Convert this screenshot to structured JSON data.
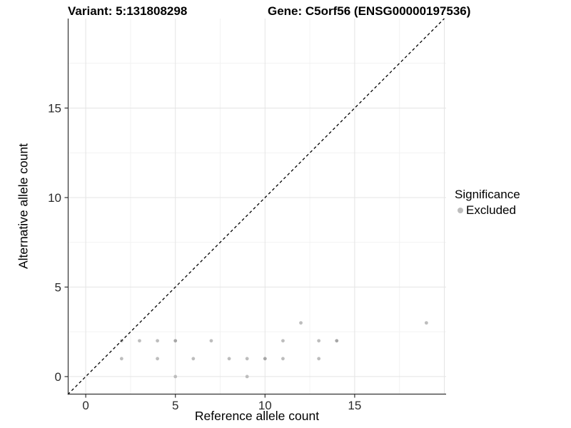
{
  "chart_data": {
    "type": "scatter",
    "title": {
      "left": "Variant: 5:131808298",
      "right": "Gene: C5orf56 (ENSG00000197536)"
    },
    "xlabel": "Reference allele count",
    "ylabel": "Alternative allele count",
    "xlim": [
      -1,
      20.1
    ],
    "ylim": [
      -1,
      20
    ],
    "x_ticks": [
      0,
      5,
      10,
      15
    ],
    "y_ticks": [
      0,
      5,
      10,
      15
    ],
    "x_grid_major": [
      0,
      5,
      10,
      15,
      20
    ],
    "y_grid_major": [
      0,
      5,
      10,
      15
    ],
    "x_grid_minor": [
      2.5,
      7.5,
      12.5,
      17.5
    ],
    "y_grid_minor": [
      2.5,
      7.5,
      12.5,
      17.5
    ],
    "grid": true,
    "reference_line": {
      "kind": "identity",
      "style": "dashed",
      "color": "#000000"
    },
    "legend": {
      "position": "right",
      "title": "Significance",
      "items": [
        {
          "label": "Excluded",
          "color": "#BDBDBD"
        }
      ]
    },
    "series": [
      {
        "name": "Excluded",
        "color": "#BDBDBD",
        "overlap_color": "#A6A6A6",
        "points": [
          {
            "x": 2,
            "y": 1
          },
          {
            "x": 2,
            "y": 2
          },
          {
            "x": 3,
            "y": 2
          },
          {
            "x": 4,
            "y": 1
          },
          {
            "x": 4,
            "y": 2
          },
          {
            "x": 5,
            "y": 0
          },
          {
            "x": 5,
            "y": 2,
            "n": 2
          },
          {
            "x": 6,
            "y": 1
          },
          {
            "x": 7,
            "y": 2
          },
          {
            "x": 8,
            "y": 1
          },
          {
            "x": 9,
            "y": 0
          },
          {
            "x": 9,
            "y": 1
          },
          {
            "x": 10,
            "y": 1,
            "n": 2
          },
          {
            "x": 11,
            "y": 1
          },
          {
            "x": 11,
            "y": 2
          },
          {
            "x": 12,
            "y": 3
          },
          {
            "x": 13,
            "y": 1
          },
          {
            "x": 13,
            "y": 2
          },
          {
            "x": 14,
            "y": 2,
            "n": 2
          },
          {
            "x": 19,
            "y": 3
          }
        ]
      }
    ],
    "colors": {
      "grid_major": "#E4E4E4",
      "grid_minor": "#F2F2F2",
      "axis_line": "#333333",
      "tick_mark": "#333333",
      "tick_label": "#2B2B2B",
      "point": "#BDBDBD",
      "point_overlap": "#A6A6A6",
      "reference_line": "#000000"
    },
    "point_radius": 2.4
  }
}
